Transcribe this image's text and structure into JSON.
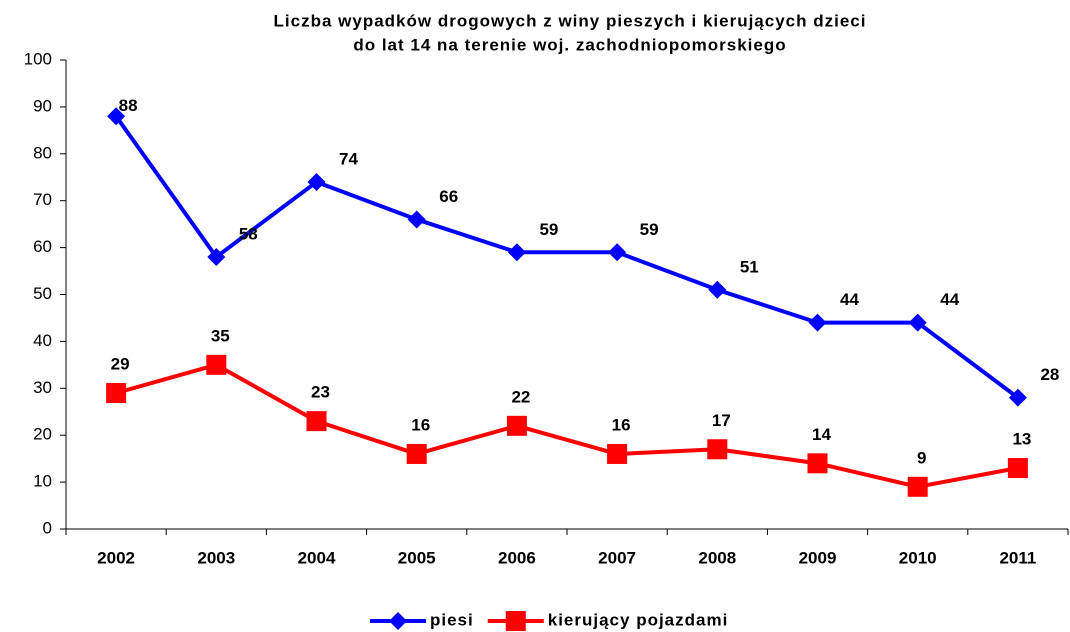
{
  "chart_data": {
    "type": "line",
    "title": [
      "Liczba wypadków drogowych z winy pieszych i kierujących dzieci",
      "do lat 14 na terenie woj. zachodniopomorskiego"
    ],
    "categories": [
      "2002",
      "2003",
      "2004",
      "2005",
      "2006",
      "2007",
      "2008",
      "2009",
      "2010",
      "2011"
    ],
    "series": [
      {
        "name": "piesi",
        "color": "#0000ff",
        "marker": "diamond",
        "values": [
          88,
          58,
          74,
          66,
          59,
          59,
          51,
          44,
          44,
          28
        ]
      },
      {
        "name": "kierujący pojazdami",
        "color": "#ff0000",
        "marker": "square",
        "values": [
          29,
          35,
          23,
          16,
          22,
          16,
          17,
          14,
          9,
          13
        ]
      }
    ],
    "ylim": [
      0,
      100
    ],
    "yticks": [
      0,
      10,
      20,
      30,
      40,
      50,
      60,
      70,
      80,
      90,
      100
    ],
    "grid": false,
    "legend": "bottom"
  }
}
